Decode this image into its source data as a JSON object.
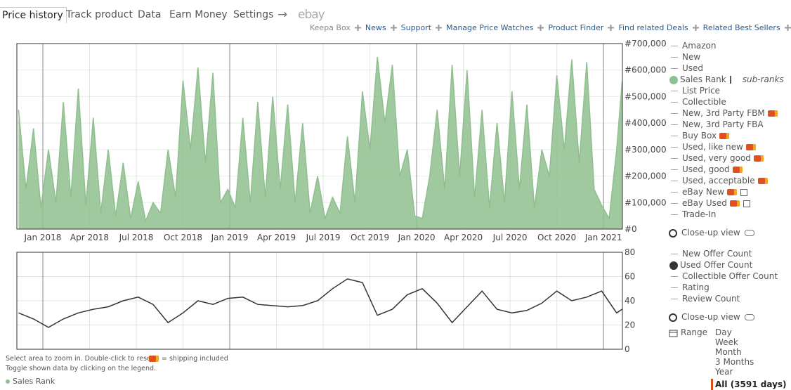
{
  "header": {
    "tabs": [
      "Price history",
      "Track product",
      "Data",
      "Earn Money",
      "Settings",
      "→",
      "ebay"
    ],
    "links": [
      "Keepa Box",
      "News",
      "Support",
      "Manage Price Watches",
      "Product Finder",
      "Find related Deals",
      "Related Best Sellers"
    ]
  },
  "chart_data": [
    {
      "type": "area",
      "xlim": [
        2017.861,
        2021.101
      ],
      "ylim": [
        0,
        700000
      ],
      "yticks": [
        {
          "value": 0,
          "label": "#0"
        },
        {
          "value": 100000,
          "label": "#100,000"
        },
        {
          "value": 200000,
          "label": "#200,000"
        },
        {
          "value": 300000,
          "label": "#300,000"
        },
        {
          "value": 400000,
          "label": "#400,000"
        },
        {
          "value": 500000,
          "label": "#500,000"
        },
        {
          "value": 600000,
          "label": "#600,000"
        },
        {
          "value": 700000,
          "label": "#700,000"
        }
      ],
      "xticks": [
        {
          "value": 2018,
          "label": "Jan 2018"
        },
        {
          "value": 2018.25,
          "label": "Apr 2018"
        },
        {
          "value": 2018.5,
          "label": "Jul 2018"
        },
        {
          "value": 2018.75,
          "label": "Oct 2018"
        },
        {
          "value": 2019,
          "label": "Jan 2019"
        },
        {
          "value": 2019.25,
          "label": "Apr 2019"
        },
        {
          "value": 2019.5,
          "label": "Jul 2019"
        },
        {
          "value": 2019.75,
          "label": "Oct 2019"
        },
        {
          "value": 2020,
          "label": "Jan 2020"
        },
        {
          "value": 2020.25,
          "label": "Apr 2020"
        },
        {
          "value": 2020.5,
          "label": "Jul 2020"
        },
        {
          "value": 2020.75,
          "label": "Oct 2020"
        },
        {
          "value": 2021,
          "label": "Jan 2021"
        }
      ],
      "grid": true,
      "x": [
        2017.87,
        2017.91,
        2017.95,
        2017.99,
        2018.03,
        2018.07,
        2018.11,
        2018.15,
        2018.19,
        2018.23,
        2018.27,
        2018.31,
        2018.35,
        2018.39,
        2018.43,
        2018.47,
        2018.51,
        2018.55,
        2018.59,
        2018.63,
        2018.67,
        2018.71,
        2018.75,
        2018.79,
        2018.83,
        2018.87,
        2018.91,
        2018.95,
        2018.99,
        2019.03,
        2019.07,
        2019.11,
        2019.15,
        2019.19,
        2019.23,
        2019.27,
        2019.31,
        2019.35,
        2019.39,
        2019.43,
        2019.47,
        2019.51,
        2019.55,
        2019.59,
        2019.63,
        2019.67,
        2019.71,
        2019.75,
        2019.79,
        2019.83,
        2019.87,
        2019.91,
        2019.95,
        2019.99,
        2020.03,
        2020.07,
        2020.11,
        2020.15,
        2020.19,
        2020.23,
        2020.27,
        2020.31,
        2020.35,
        2020.39,
        2020.43,
        2020.47,
        2020.51,
        2020.55,
        2020.59,
        2020.63,
        2020.67,
        2020.71,
        2020.75,
        2020.79,
        2020.83,
        2020.87,
        2020.91,
        2020.95,
        2020.99,
        2021.03,
        2021.07,
        2021.1
      ],
      "series": [
        {
          "color": "#8fbf8f",
          "values": [
            450000,
            150000,
            380000,
            80000,
            300000,
            100000,
            480000,
            120000,
            530000,
            90000,
            420000,
            60000,
            300000,
            50000,
            250000,
            40000,
            180000,
            30000,
            100000,
            60000,
            300000,
            120000,
            560000,
            300000,
            610000,
            250000,
            590000,
            100000,
            150000,
            80000,
            420000,
            100000,
            480000,
            120000,
            500000,
            150000,
            470000,
            100000,
            400000,
            60000,
            200000,
            40000,
            120000,
            60000,
            350000,
            100000,
            520000,
            300000,
            650000,
            400000,
            620000,
            200000,
            300000,
            50000,
            40000,
            200000,
            450000,
            150000,
            620000,
            200000,
            600000,
            120000,
            450000,
            80000,
            400000,
            100000,
            520000,
            150000,
            470000,
            80000,
            300000,
            200000,
            580000,
            300000,
            640000,
            250000,
            630000,
            150000,
            90000,
            40000,
            300000,
            560000
          ]
        }
      ]
    },
    {
      "type": "line",
      "xlim": [
        2017.861,
        2021.101
      ],
      "ylim": [
        0,
        80
      ],
      "yticks": [
        0,
        20,
        40,
        60,
        80
      ],
      "xticks": [
        2018,
        2018.25,
        2018.5,
        2018.75,
        2019,
        2019.25,
        2019.5,
        2019.75,
        2020,
        2020.25,
        2020.5,
        2020.75,
        2021
      ],
      "grid": true,
      "x": [
        2017.87,
        2017.95,
        2018.03,
        2018.11,
        2018.19,
        2018.27,
        2018.35,
        2018.43,
        2018.51,
        2018.59,
        2018.67,
        2018.75,
        2018.83,
        2018.91,
        2018.99,
        2019.07,
        2019.15,
        2019.23,
        2019.31,
        2019.39,
        2019.47,
        2019.55,
        2019.63,
        2019.71,
        2019.79,
        2019.87,
        2019.95,
        2020.03,
        2020.11,
        2020.19,
        2020.27,
        2020.35,
        2020.43,
        2020.51,
        2020.59,
        2020.67,
        2020.75,
        2020.83,
        2020.91,
        2020.99,
        2021.07,
        2021.1
      ],
      "series": [
        {
          "color": "#333333",
          "values": [
            30,
            25,
            18,
            25,
            30,
            33,
            35,
            40,
            43,
            37,
            22,
            30,
            40,
            37,
            42,
            43,
            37,
            36,
            35,
            36,
            40,
            50,
            58,
            55,
            28,
            33,
            45,
            50,
            38,
            22,
            35,
            48,
            33,
            30,
            32,
            38,
            48,
            40,
            43,
            48,
            30,
            33
          ]
        }
      ]
    }
  ],
  "legend_price": {
    "items": [
      "Amazon",
      "New",
      "Used",
      "Sales Rank",
      "List Price",
      "Collectible",
      "New, 3rd Party FBM",
      "New, 3rd Party FBA",
      "Buy Box",
      "Used, like new",
      "Used, very good",
      "Used, good",
      "Used, acceptable",
      "eBay New",
      "eBay Used",
      "Trade-In"
    ],
    "active": 3,
    "sub": "sub-ranks",
    "closeup": "Close-up view"
  },
  "legend_offers": {
    "items": [
      "New Offer Count",
      "Used Offer Count",
      "Collectible Offer Count",
      "Rating",
      "Review Count"
    ],
    "active": 1,
    "closeup": "Close-up view"
  },
  "range": {
    "label": "Range",
    "options": [
      "Day",
      "Week",
      "Month",
      "3 Months",
      "Year",
      "All (3591 days)"
    ]
  },
  "footer": {
    "hint1": "Select area to zoom in. Double-click to reset.",
    "shipping": "= shipping included",
    "hint2": "Toggle shown data by clicking on the legend.",
    "series": "Sales Rank"
  }
}
